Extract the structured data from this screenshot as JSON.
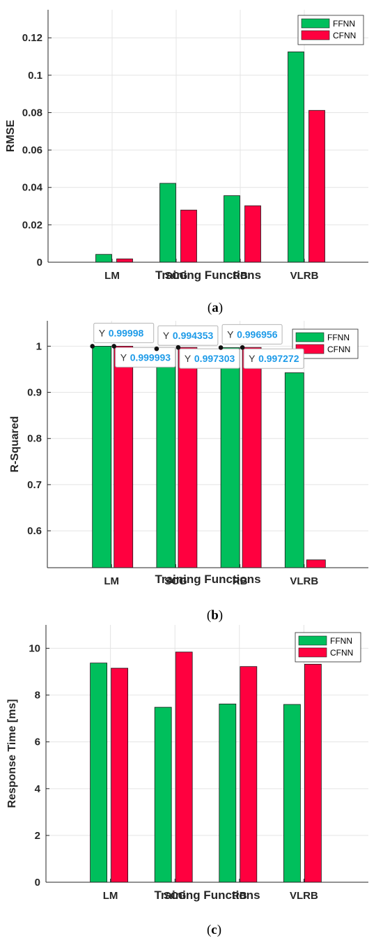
{
  "colors": {
    "FFNN": "#00bf5c",
    "CFNN": "#ff003f",
    "grid": "#e4e4e4",
    "axis": "#262626"
  },
  "chart_data": [
    {
      "type": "bar",
      "caption": "(a)",
      "caption_letter": "a",
      "categories": [
        "LM",
        "SCG",
        "RB",
        "VLRB"
      ],
      "series": [
        {
          "name": "FFNN",
          "values": [
            0.0042,
            0.0422,
            0.0356,
            0.1125
          ]
        },
        {
          "name": "CFNN",
          "values": [
            0.0018,
            0.0279,
            0.0302,
            0.0812
          ]
        }
      ],
      "xlabel": "Training Functions",
      "ylabel": "RMSE",
      "ylim": [
        0,
        0.135
      ],
      "yticks": [
        0,
        0.02,
        0.04,
        0.06,
        0.08,
        0.1,
        0.12
      ],
      "ytick_labels": [
        "0",
        "0.02",
        "0.04",
        "0.06",
        "0.08",
        "0.1",
        "0.12"
      ],
      "grid": true,
      "legend": "top-right"
    },
    {
      "type": "bar",
      "caption": "(b)",
      "caption_letter": "b",
      "categories": [
        "LM",
        "SCG",
        "RB",
        "VLRB"
      ],
      "series": [
        {
          "name": "FFNN",
          "values": [
            0.99998,
            0.994353,
            0.996956,
            0.9425
          ]
        },
        {
          "name": "CFNN",
          "values": [
            0.999993,
            0.997303,
            0.997272,
            0.537
          ]
        }
      ],
      "xlabel": "Training Functions",
      "ylabel": "R-Squared",
      "ylim": [
        0.52,
        1.055
      ],
      "yticks": [
        0.6,
        0.7,
        0.8,
        0.9,
        1
      ],
      "ytick_labels": [
        "0.6",
        "0.7",
        "0.8",
        "0.9",
        "1"
      ],
      "grid": true,
      "legend": "top-right",
      "datatips": [
        {
          "series": 0,
          "index": 0,
          "prefix": "Y",
          "label": "0.99998"
        },
        {
          "series": 1,
          "index": 0,
          "prefix": "Y",
          "label": "0.999993"
        },
        {
          "series": 0,
          "index": 1,
          "prefix": "Y",
          "label": "0.994353"
        },
        {
          "series": 1,
          "index": 1,
          "prefix": "Y",
          "label": "0.997303"
        },
        {
          "series": 0,
          "index": 2,
          "prefix": "Y",
          "label": "0.996956"
        },
        {
          "series": 1,
          "index": 2,
          "prefix": "Y",
          "label": "0.997272"
        }
      ]
    },
    {
      "type": "bar",
      "caption": "(c)",
      "caption_letter": "c",
      "categories": [
        "LM",
        "SCG",
        "RB",
        "VLRB"
      ],
      "series": [
        {
          "name": "FFNN",
          "values": [
            9.37,
            7.48,
            7.62,
            7.6
          ]
        },
        {
          "name": "CFNN",
          "values": [
            9.15,
            9.84,
            9.22,
            9.32
          ]
        }
      ],
      "xlabel": "Training Functions",
      "ylabel": "Response Time [ms]",
      "ylim": [
        0,
        11
      ],
      "yticks": [
        0,
        2,
        4,
        6,
        8,
        10
      ],
      "ytick_labels": [
        "0",
        "2",
        "4",
        "6",
        "8",
        "10"
      ],
      "grid": true,
      "legend": "top-right"
    }
  ]
}
